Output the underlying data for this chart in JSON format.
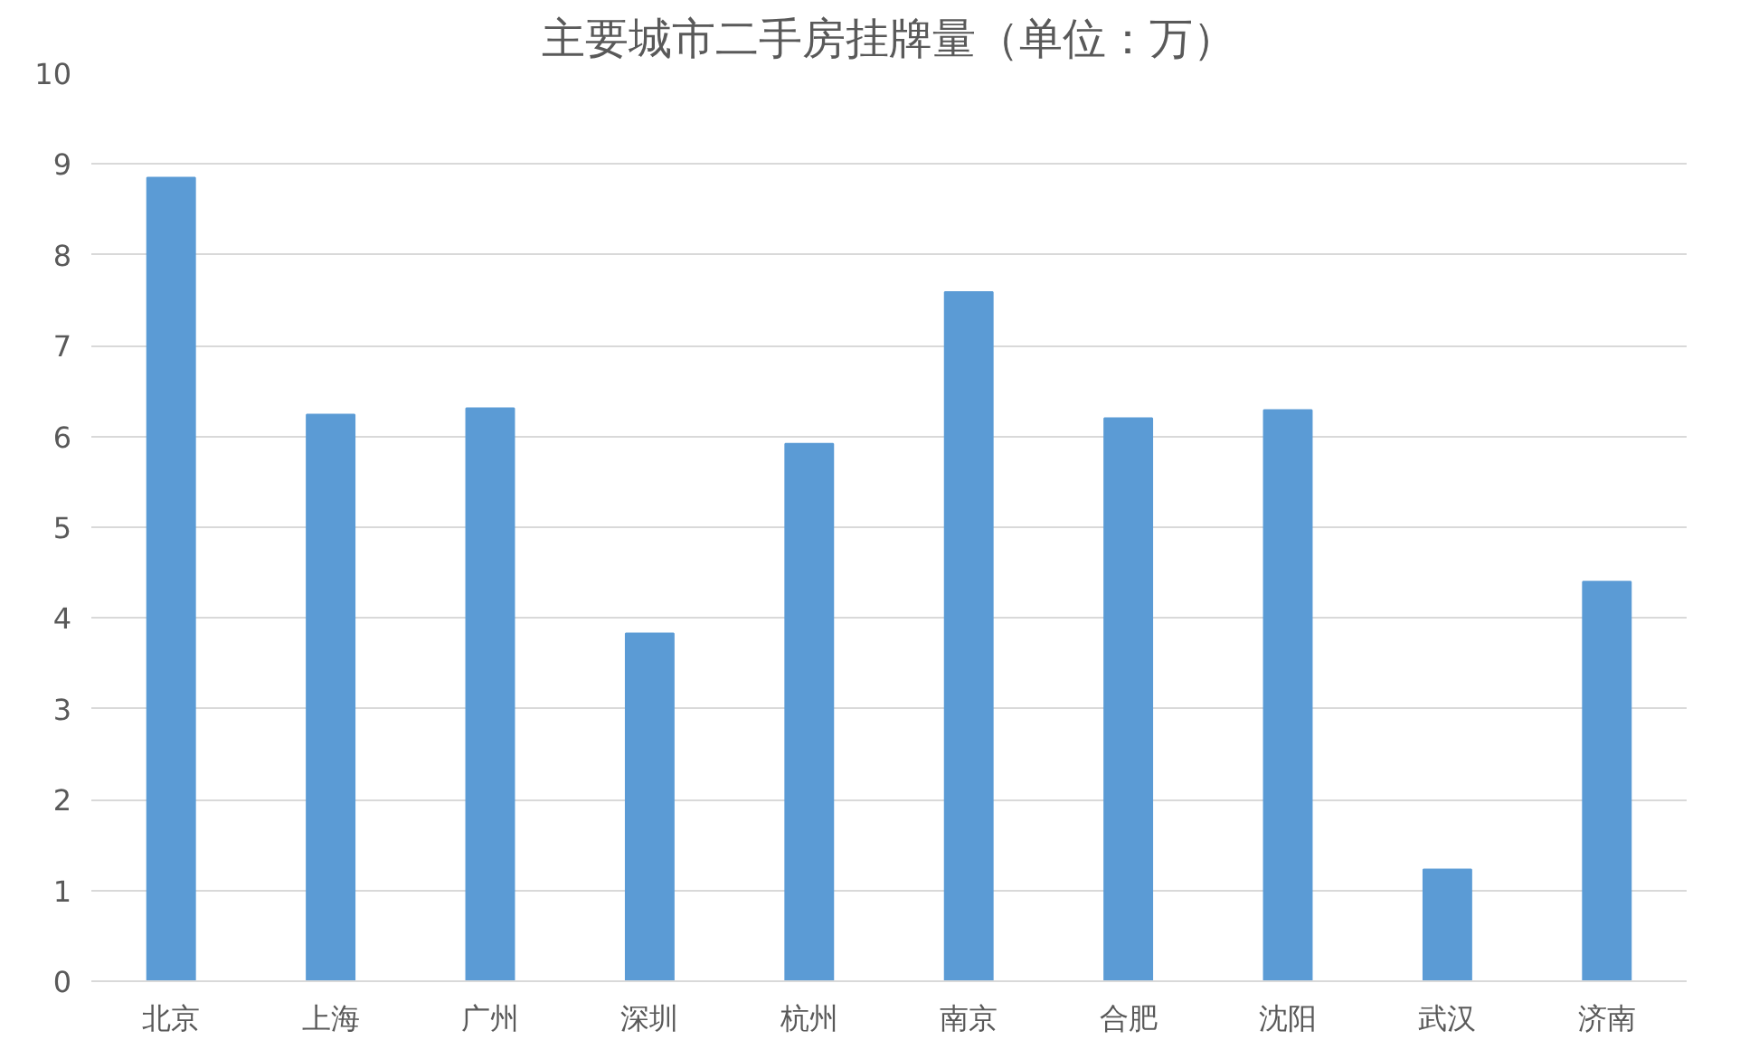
{
  "chart_data": {
    "type": "bar",
    "title": "主要城市二手房挂牌量（单位：万）",
    "categories": [
      "北京",
      "上海",
      "广州",
      "深圳",
      "杭州",
      "南京",
      "合肥",
      "沈阳",
      "武汉",
      "济南"
    ],
    "values": [
      8.85,
      6.24,
      6.31,
      3.83,
      5.92,
      7.59,
      6.2,
      6.29,
      1.23,
      4.4
    ],
    "color": "#5b9bd5",
    "ylim": [
      0,
      10
    ],
    "yticks": [
      0,
      1,
      2,
      3,
      4,
      5,
      6,
      7,
      8,
      9,
      10
    ],
    "grid": "y"
  }
}
